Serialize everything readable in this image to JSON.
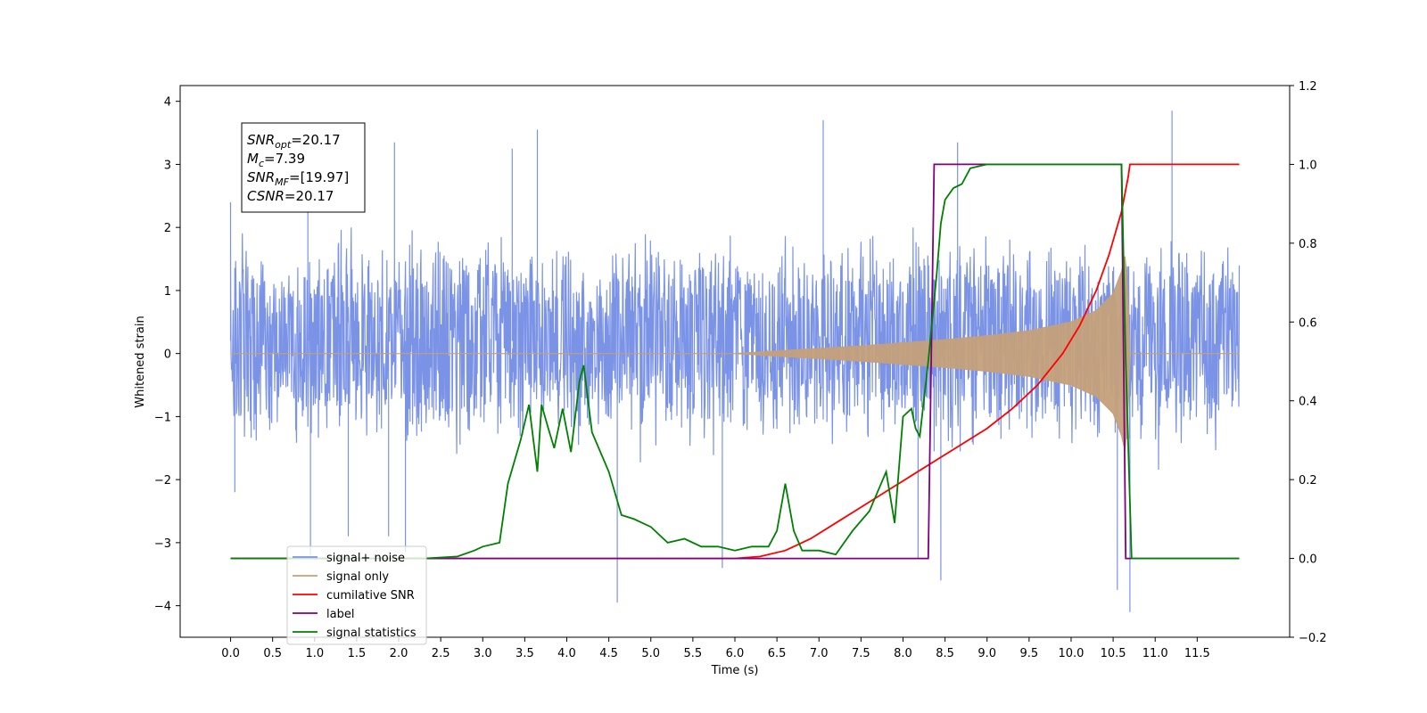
{
  "chart_data": {
    "type": "line",
    "xlabel": "Time (s)",
    "ylabel": "Whitened strain",
    "xlim": [
      -0.6,
      12.6
    ],
    "ylim": [
      -4.5,
      4.25
    ],
    "y2lim": [
      -0.2,
      1.2
    ],
    "x_ticks": [
      "0.0",
      "0.5",
      "1.0",
      "1.5",
      "2.0",
      "2.5",
      "3.0",
      "3.5",
      "4.0",
      "4.5",
      "5.0",
      "5.5",
      "6.0",
      "6.5",
      "7.0",
      "7.5",
      "8.0",
      "8.5",
      "9.0",
      "9.5",
      "10.0",
      "10.5",
      "11.0",
      "11.5"
    ],
    "y_ticks": [
      "4",
      "3",
      "2",
      "1",
      "0",
      "−1",
      "−2",
      "−3",
      "−4"
    ],
    "y2_ticks": [
      "1.2",
      "1.0",
      "0.8",
      "0.6",
      "0.4",
      "0.2",
      "0.0",
      "−0.2"
    ],
    "grid": false,
    "legend_position": "lower-left",
    "annotation": {
      "lines": [
        {
          "base": "SNR",
          "sub": "opt",
          "value": "=20.17"
        },
        {
          "base": "M",
          "sub": "c",
          "value": "=7.39"
        },
        {
          "base": "SNR",
          "sub": "MF",
          "value": "=[19.97]"
        },
        {
          "base": "CSNR",
          "sub": "",
          "value": "=20.17"
        }
      ]
    },
    "series": [
      {
        "name": "signal+ noise",
        "axis": "left",
        "color": "#7b93e6",
        "kind": "noise_band",
        "x_range": [
          0.0,
          12.0
        ],
        "approx_range": [
          -2.2,
          2.0
        ],
        "spikes": [
          {
            "x": 0.0,
            "y": 2.4
          },
          {
            "x": 0.05,
            "y": -2.2
          },
          {
            "x": 0.92,
            "y": 2.3
          },
          {
            "x": 0.95,
            "y": -3.2
          },
          {
            "x": 1.4,
            "y": -2.9
          },
          {
            "x": 1.88,
            "y": -2.9
          },
          {
            "x": 1.95,
            "y": 3.35
          },
          {
            "x": 2.08,
            "y": -3.15
          },
          {
            "x": 3.35,
            "y": 3.25
          },
          {
            "x": 3.65,
            "y": 3.55
          },
          {
            "x": 4.6,
            "y": -3.95
          },
          {
            "x": 5.85,
            "y": -3.4
          },
          {
            "x": 7.05,
            "y": 3.7
          },
          {
            "x": 8.18,
            "y": -3.25
          },
          {
            "x": 8.45,
            "y": -3.6
          },
          {
            "x": 8.65,
            "y": 3.35
          },
          {
            "x": 10.55,
            "y": -3.75
          },
          {
            "x": 10.7,
            "y": -4.1
          },
          {
            "x": 11.2,
            "y": 3.85
          }
        ]
      },
      {
        "name": "signal only",
        "axis": "left",
        "color": "#c4a07a",
        "kind": "chirp_envelope",
        "x": [
          0.0,
          6.0,
          6.5,
          7.0,
          7.5,
          8.0,
          8.5,
          9.0,
          9.5,
          10.0,
          10.3,
          10.5,
          10.6,
          10.65,
          10.7,
          12.0
        ],
        "amplitude": [
          0.0,
          0.0,
          0.04,
          0.08,
          0.12,
          0.17,
          0.22,
          0.28,
          0.36,
          0.5,
          0.68,
          0.95,
          1.3,
          1.6,
          0.0,
          0.0
        ]
      },
      {
        "name": "cumilative SNR",
        "axis": "right",
        "color": "#ff0000",
        "x": [
          0.0,
          6.0,
          6.3,
          6.6,
          6.9,
          7.2,
          7.5,
          7.8,
          8.1,
          8.4,
          8.7,
          9.0,
          9.3,
          9.6,
          9.9,
          10.1,
          10.3,
          10.45,
          10.6,
          10.68,
          10.7,
          12.0
        ],
        "values": [
          0.0,
          0.0,
          0.005,
          0.02,
          0.05,
          0.09,
          0.13,
          0.17,
          0.21,
          0.25,
          0.29,
          0.33,
          0.38,
          0.44,
          0.52,
          0.59,
          0.68,
          0.77,
          0.88,
          0.97,
          1.0,
          1.0
        ]
      },
      {
        "name": "label",
        "axis": "right",
        "color": "#800080",
        "x": [
          0.0,
          8.3,
          8.37,
          10.6,
          10.65,
          12.0
        ],
        "values": [
          0.0,
          0.0,
          1.0,
          1.0,
          0.0,
          0.0
        ]
      },
      {
        "name": "signal statistics",
        "axis": "right",
        "color": "#008000",
        "x": [
          0.0,
          2.3,
          2.7,
          2.9,
          3.0,
          3.2,
          3.3,
          3.45,
          3.55,
          3.65,
          3.7,
          3.78,
          3.85,
          3.95,
          4.05,
          4.15,
          4.2,
          4.3,
          4.4,
          4.5,
          4.65,
          4.8,
          5.0,
          5.2,
          5.4,
          5.6,
          5.8,
          6.0,
          6.2,
          6.4,
          6.5,
          6.6,
          6.7,
          6.8,
          7.0,
          7.2,
          7.4,
          7.6,
          7.8,
          7.9,
          8.0,
          8.1,
          8.15,
          8.2,
          8.3,
          8.4,
          8.45,
          8.5,
          8.6,
          8.7,
          8.8,
          9.0,
          9.1,
          9.5,
          10.6,
          10.65,
          10.72,
          12.0
        ],
        "values": [
          0.0,
          0.0,
          0.005,
          0.02,
          0.03,
          0.04,
          0.19,
          0.3,
          0.39,
          0.22,
          0.39,
          0.33,
          0.28,
          0.38,
          0.27,
          0.45,
          0.49,
          0.32,
          0.27,
          0.22,
          0.11,
          0.1,
          0.08,
          0.04,
          0.05,
          0.03,
          0.03,
          0.02,
          0.03,
          0.03,
          0.07,
          0.19,
          0.07,
          0.02,
          0.02,
          0.01,
          0.07,
          0.12,
          0.22,
          0.09,
          0.36,
          0.38,
          0.33,
          0.31,
          0.5,
          0.72,
          0.85,
          0.91,
          0.94,
          0.95,
          0.99,
          1.0,
          1.0,
          1.0,
          1.0,
          0.5,
          0.0,
          0.0
        ]
      }
    ]
  }
}
